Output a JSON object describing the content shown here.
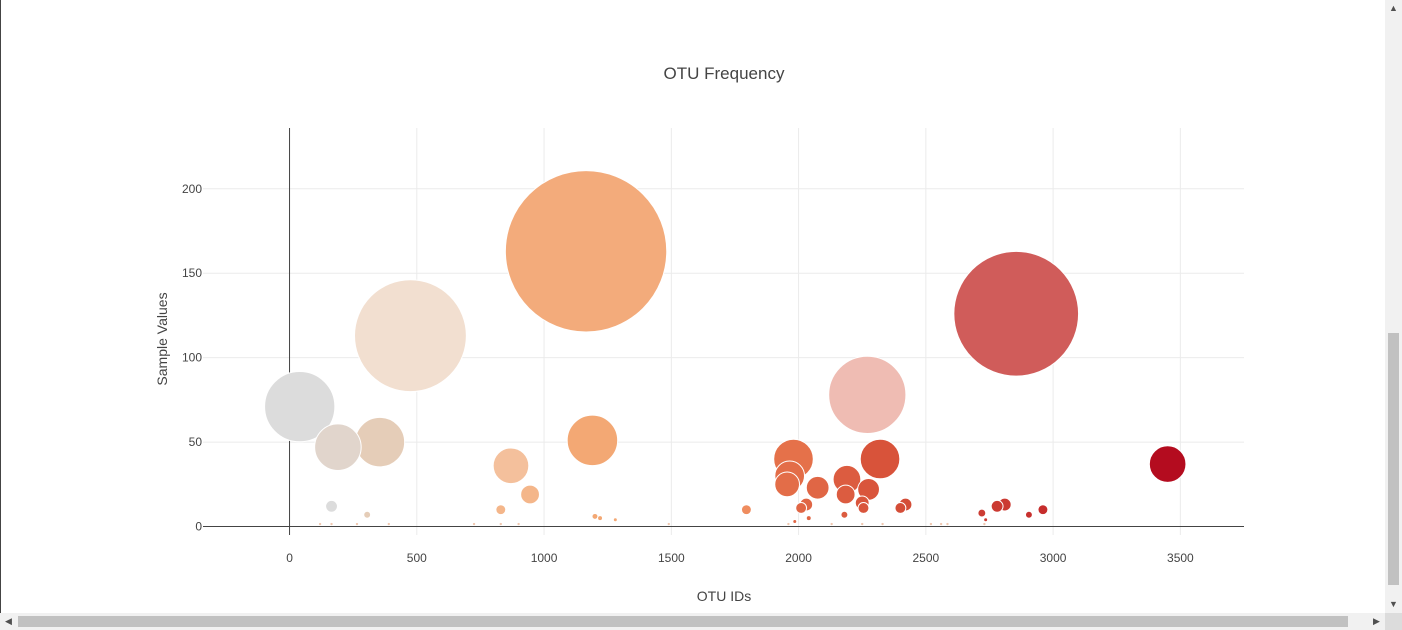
{
  "chart_data": {
    "type": "scatter",
    "title": "OTU Frequency",
    "xlabel": "OTU IDs",
    "ylabel": "Sample Values",
    "xlim": [
      -340,
      3750
    ],
    "ylim": [
      -5,
      236
    ],
    "xticks": [
      "0",
      "500",
      "1000",
      "1500",
      "2000",
      "2500",
      "3000",
      "3500"
    ],
    "yticks": [
      "0",
      "50",
      "100",
      "150",
      "200"
    ],
    "grid": true,
    "legend": "none",
    "points": [
      {
        "x": 40,
        "y": 71,
        "color": "#dcdcdc"
      },
      {
        "x": 190,
        "y": 47,
        "color": "#e1d5cc"
      },
      {
        "x": 355,
        "y": 50,
        "color": "#e5cdb8"
      },
      {
        "x": 475,
        "y": 113,
        "color": "#f2dfd0"
      },
      {
        "x": 165,
        "y": 12,
        "color": "#dcdcdc"
      },
      {
        "x": 305,
        "y": 7,
        "color": "#e5cdb8"
      },
      {
        "x": 870,
        "y": 36,
        "color": "#f4c09c"
      },
      {
        "x": 945,
        "y": 19,
        "color": "#f4b68a"
      },
      {
        "x": 830,
        "y": 10,
        "color": "#f4b68a"
      },
      {
        "x": 1165,
        "y": 163,
        "color": "#f3ab7b"
      },
      {
        "x": 1190,
        "y": 51,
        "color": "#f3a874"
      },
      {
        "x": 1200,
        "y": 6,
        "color": "#f3a874"
      },
      {
        "x": 1220,
        "y": 5,
        "color": "#f3a874"
      },
      {
        "x": 1280,
        "y": 4,
        "color": "#f3a874"
      },
      {
        "x": 1795,
        "y": 10,
        "color": "#ef8d5f"
      },
      {
        "x": 1980,
        "y": 40,
        "color": "#e5714a"
      },
      {
        "x": 1965,
        "y": 30,
        "color": "#e36d48"
      },
      {
        "x": 1955,
        "y": 25,
        "color": "#e36d48"
      },
      {
        "x": 2075,
        "y": 23,
        "color": "#e06645"
      },
      {
        "x": 2030,
        "y": 13,
        "color": "#e06645"
      },
      {
        "x": 2010,
        "y": 11,
        "color": "#e06645"
      },
      {
        "x": 2040,
        "y": 5,
        "color": "#e06645"
      },
      {
        "x": 1985,
        "y": 3,
        "color": "#e06645"
      },
      {
        "x": 2190,
        "y": 28,
        "color": "#dc5c40"
      },
      {
        "x": 2185,
        "y": 19,
        "color": "#dc5c40"
      },
      {
        "x": 2275,
        "y": 22,
        "color": "#d9553c"
      },
      {
        "x": 2250,
        "y": 14,
        "color": "#d9553c"
      },
      {
        "x": 2255,
        "y": 11,
        "color": "#d9553c"
      },
      {
        "x": 2180,
        "y": 7,
        "color": "#dc5c40"
      },
      {
        "x": 2270,
        "y": 78,
        "color": "#efbcb3"
      },
      {
        "x": 2320,
        "y": 40,
        "color": "#d8533a"
      },
      {
        "x": 2420,
        "y": 13,
        "color": "#d44d37"
      },
      {
        "x": 2400,
        "y": 11,
        "color": "#d44d37"
      },
      {
        "x": 2720,
        "y": 8,
        "color": "#cc3c33"
      },
      {
        "x": 2735,
        "y": 4,
        "color": "#cc3c33"
      },
      {
        "x": 2780,
        "y": 12,
        "color": "#cb3a32"
      },
      {
        "x": 2810,
        "y": 13,
        "color": "#cb3a32"
      },
      {
        "x": 2855,
        "y": 126,
        "color": "#d05c5a"
      },
      {
        "x": 2905,
        "y": 7,
        "color": "#c8312e"
      },
      {
        "x": 2960,
        "y": 10,
        "color": "#c62d2c"
      },
      {
        "x": 3450,
        "y": 37,
        "color": "#b40c1f"
      }
    ]
  }
}
